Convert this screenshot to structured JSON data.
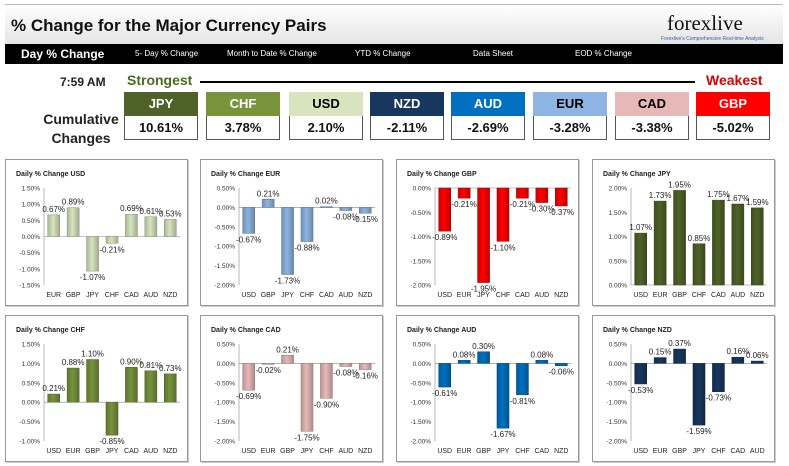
{
  "title": "% Change for the Major Currency Pairs",
  "logo": {
    "text": "forexlive",
    "tagline": "Forexlive's Comprehensive Real-time Analysis"
  },
  "nav": [
    {
      "label": "Day % Change",
      "active": true
    },
    {
      "label": "5- Day % Change",
      "active": false
    },
    {
      "label": "Month to Date % Change",
      "active": false
    },
    {
      "label": "YTD % Change",
      "active": false
    },
    {
      "label": "Data Sheet",
      "active": false
    },
    {
      "label": "EOD % Change",
      "active": false
    }
  ],
  "time": "7:59 AM",
  "strongest_label": "Strongest",
  "weakest_label": "Weakest",
  "cumulative_label": "Cumulative Changes",
  "currencies": [
    {
      "code": "JPY",
      "value": "10.61%",
      "bg": "#4f6228",
      "fg": "#ffffff"
    },
    {
      "code": "CHF",
      "value": "3.78%",
      "bg": "#77933c",
      "fg": "#ffffff"
    },
    {
      "code": "USD",
      "value": "2.10%",
      "bg": "#d7e4bd",
      "fg": "#000000"
    },
    {
      "code": "NZD",
      "value": "-2.11%",
      "bg": "#17375e",
      "fg": "#ffffff"
    },
    {
      "code": "AUD",
      "value": "-2.69%",
      "bg": "#0070c0",
      "fg": "#ffffff"
    },
    {
      "code": "EUR",
      "value": "-3.28%",
      "bg": "#8db4e2",
      "fg": "#000000"
    },
    {
      "code": "CAD",
      "value": "-3.38%",
      "bg": "#e6b9b8",
      "fg": "#000000"
    },
    {
      "code": "GBP",
      "value": "-5.02%",
      "bg": "#ff0000",
      "fg": "#ffffff"
    }
  ],
  "chart_data": [
    {
      "type": "bar",
      "title": "Daily % Change USD",
      "categories": [
        "EUR",
        "GBP",
        "JPY",
        "CHF",
        "CAD",
        "AUD",
        "NZD"
      ],
      "values": [
        0.67,
        0.89,
        -1.07,
        -0.21,
        0.69,
        0.61,
        0.53
      ],
      "ylim": [
        -1.5,
        1.5
      ],
      "ticks": [
        -1.5,
        -1.0,
        -0.5,
        0.0,
        0.5,
        1.0,
        1.5
      ],
      "tick_labels": [
        "-1.50%",
        "-1.00%",
        "-0.50%",
        "0.00%",
        "0.50%",
        "1.00%",
        "1.50%"
      ],
      "data_labels": [
        "0.67%",
        "0.89%",
        "-1.07%",
        "-0.21%",
        "0.69%",
        "0.61%",
        "0.53%"
      ],
      "color": "#d7e4bd",
      "grid": false
    },
    {
      "type": "bar",
      "title": "Daily % Change EUR",
      "categories": [
        "USD",
        "GBP",
        "JPY",
        "CHF",
        "CAD",
        "AUD",
        "NZD"
      ],
      "values": [
        -0.67,
        0.21,
        -1.73,
        -0.88,
        0.02,
        -0.08,
        -0.15
      ],
      "ylim": [
        -2.0,
        0.5
      ],
      "ticks": [
        -2.0,
        -1.5,
        -1.0,
        -0.5,
        0.0,
        0.5
      ],
      "tick_labels": [
        "-2.00%",
        "-1.50%",
        "-1.00%",
        "-0.50%",
        "0.00%",
        "0.50%"
      ],
      "data_labels": [
        "-0.67%",
        "0.21%",
        "-1.73%",
        "-0.88%",
        "0.02%",
        "-0.08%",
        "-0.15%"
      ],
      "color": "#8db4e2",
      "grid": false
    },
    {
      "type": "bar",
      "title": "Daily % Change GBP",
      "categories": [
        "USD",
        "EUR",
        "JPY",
        "CHF",
        "CAD",
        "AUD",
        "NZD"
      ],
      "values": [
        -0.89,
        -0.21,
        -1.95,
        -1.1,
        -0.21,
        -0.3,
        -0.37
      ],
      "ylim": [
        -2.0,
        0.0
      ],
      "ticks": [
        -2.0,
        -1.5,
        -1.0,
        -0.5,
        0.0
      ],
      "tick_labels": [
        "-2.00%",
        "-1.50%",
        "-1.00%",
        "-0.50%",
        "0.00%"
      ],
      "data_labels": [
        "-0.89%",
        "-0.21%",
        "-1.95%",
        "-1.10%",
        "-0.21%",
        "-0.30%",
        "-0.37%"
      ],
      "color": "#ff0000",
      "grid": false
    },
    {
      "type": "bar",
      "title": "Daily % Change JPY",
      "categories": [
        "USD",
        "EUR",
        "GBP",
        "CHF",
        "CAD",
        "AUD",
        "NZD"
      ],
      "values": [
        1.07,
        1.73,
        1.95,
        0.85,
        1.75,
        1.67,
        1.59
      ],
      "ylim": [
        0.0,
        2.0
      ],
      "ticks": [
        0.0,
        0.5,
        1.0,
        1.5,
        2.0
      ],
      "tick_labels": [
        "0.00%",
        "0.50%",
        "1.00%",
        "1.50%",
        "2.00%"
      ],
      "data_labels": [
        "1.07%",
        "1.73%",
        "1.95%",
        "0.85%",
        "1.75%",
        "1.67%",
        "1.59%"
      ],
      "color": "#4f6228",
      "grid": false
    },
    {
      "type": "bar",
      "title": "Daily % Change CHF",
      "categories": [
        "USD",
        "EUR",
        "GBP",
        "JPY",
        "CAD",
        "AUD",
        "NZD"
      ],
      "values": [
        0.21,
        0.88,
        1.1,
        -0.85,
        0.9,
        0.81,
        0.73
      ],
      "ylim": [
        -1.0,
        1.5
      ],
      "ticks": [
        -1.0,
        -0.5,
        0.0,
        0.5,
        1.0,
        1.5
      ],
      "tick_labels": [
        "-1.00%",
        "-0.50%",
        "0.00%",
        "0.50%",
        "1.00%",
        "1.50%"
      ],
      "data_labels": [
        "0.21%",
        "0.88%",
        "1.10%",
        "-0.85%",
        "0.90%",
        "0.81%",
        "0.73%"
      ],
      "color": "#77933c",
      "grid": false
    },
    {
      "type": "bar",
      "title": "Daily % Change CAD",
      "categories": [
        "USD",
        "EUR",
        "GBP",
        "JPY",
        "CHF",
        "AUD",
        "NZD"
      ],
      "values": [
        -0.69,
        -0.02,
        0.21,
        -1.75,
        -0.9,
        -0.08,
        -0.16
      ],
      "ylim": [
        -2.0,
        0.5
      ],
      "ticks": [
        -2.0,
        -1.5,
        -1.0,
        -0.5,
        0.0,
        0.5
      ],
      "tick_labels": [
        "-2.00%",
        "-1.50%",
        "-1.00%",
        "-0.50%",
        "0.00%",
        "0.50%"
      ],
      "data_labels": [
        "-0.69%",
        "-0.02%",
        "0.21%",
        "-1.75%",
        "-0.90%",
        "-0.08%",
        "-0.16%"
      ],
      "color": "#e6b9b8",
      "grid": false
    },
    {
      "type": "bar",
      "title": "Daily % Change AUD",
      "categories": [
        "USD",
        "EUR",
        "GBP",
        "JPY",
        "CHF",
        "CAD",
        "NZD"
      ],
      "values": [
        -0.61,
        0.08,
        0.3,
        -1.67,
        -0.81,
        0.08,
        -0.06
      ],
      "ylim": [
        -2.0,
        0.5
      ],
      "ticks": [
        -2.0,
        -1.5,
        -1.0,
        -0.5,
        0.0,
        0.5
      ],
      "tick_labels": [
        "-2.00%",
        "-1.50%",
        "-1.00%",
        "-0.50%",
        "0.00%",
        "0.50%"
      ],
      "data_labels": [
        "-0.61%",
        "0.08%",
        "0.30%",
        "-1.67%",
        "-0.81%",
        "0.08%",
        "-0.06%"
      ],
      "color": "#0070c0",
      "grid": false
    },
    {
      "type": "bar",
      "title": "Daily % Change NZD",
      "categories": [
        "USD",
        "EUR",
        "GBP",
        "JPY",
        "CHF",
        "CAD",
        "AUD"
      ],
      "values": [
        -0.53,
        0.15,
        0.37,
        -1.59,
        -0.73,
        0.16,
        0.06
      ],
      "ylim": [
        -2.0,
        0.5
      ],
      "ticks": [
        -2.0,
        -1.5,
        -1.0,
        -0.5,
        0.0,
        0.5
      ],
      "tick_labels": [
        "-2.00%",
        "-1.50%",
        "-1.00%",
        "-0.50%",
        "0.00%",
        "0.50%"
      ],
      "data_labels": [
        "-0.53%",
        "0.15%",
        "0.37%",
        "-1.59%",
        "-0.73%",
        "0.16%",
        "0.06%"
      ],
      "color": "#17375e",
      "grid": false
    }
  ]
}
